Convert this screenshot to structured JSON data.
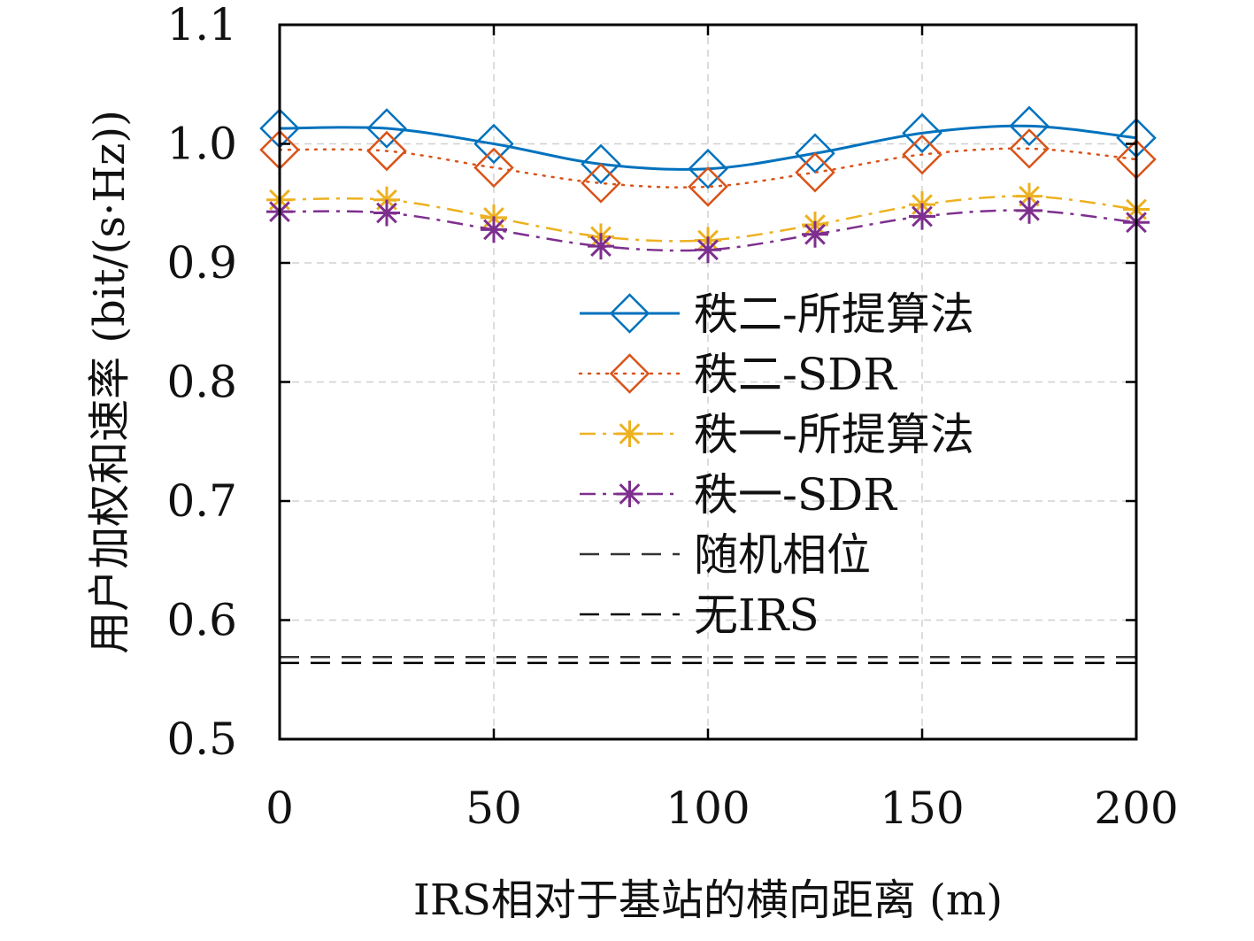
{
  "chart_data": {
    "type": "line",
    "title": "",
    "xlabel": "IRS相对于基站的横向距离 (m)",
    "ylabel": "用户加权和速率 (bit/(s·Hz))",
    "xlim": [
      0,
      200
    ],
    "ylim": [
      0.5,
      1.1
    ],
    "xticks": [
      0,
      50,
      100,
      150,
      200
    ],
    "xtick_labels": [
      "0",
      "50",
      "100",
      "150",
      "200"
    ],
    "yticks": [
      0.5,
      0.6,
      0.7,
      0.8,
      0.9,
      1.0,
      1.1
    ],
    "ytick_labels": [
      "0.5",
      "0.6",
      "0.7",
      "0.8",
      "0.9",
      "1.0",
      "1.1"
    ],
    "grid": true,
    "legend_position": "center-right",
    "x": [
      0,
      25,
      50,
      75,
      100,
      125,
      150,
      175,
      200
    ],
    "series": [
      {
        "name": "秩二-所提算法",
        "color": "#0072BD",
        "line_style": "solid",
        "marker": "diamond",
        "values": [
          1.013,
          1.013,
          1.0,
          0.983,
          0.979,
          0.992,
          1.009,
          1.015,
          1.005
        ]
      },
      {
        "name": "秩二-SDR",
        "color": "#D95319",
        "line_style": "dotted",
        "marker": "diamond",
        "values": [
          0.995,
          0.994,
          0.98,
          0.967,
          0.964,
          0.976,
          0.991,
          0.996,
          0.987
        ]
      },
      {
        "name": "秩一-所提算法",
        "color": "#EDB120",
        "line_style": "dashdot",
        "marker": "asterisk",
        "values": [
          0.953,
          0.953,
          0.938,
          0.922,
          0.919,
          0.932,
          0.949,
          0.956,
          0.945
        ]
      },
      {
        "name": "秩一-SDR",
        "color": "#7E2F8E",
        "line_style": "dashdot",
        "marker": "asterisk",
        "values": [
          0.943,
          0.942,
          0.928,
          0.914,
          0.911,
          0.924,
          0.939,
          0.944,
          0.934
        ]
      },
      {
        "name": "随机相位",
        "color": "#333333",
        "line_style": "dashed",
        "marker": "none",
        "values": [
          0.569,
          0.569,
          0.569,
          0.569,
          0.569,
          0.569,
          0.569,
          0.569,
          0.569
        ]
      },
      {
        "name": "无IRS",
        "color": "#000000",
        "line_style": "dashed",
        "marker": "none",
        "values": [
          0.564,
          0.564,
          0.564,
          0.564,
          0.564,
          0.564,
          0.564,
          0.564,
          0.564
        ]
      }
    ]
  }
}
